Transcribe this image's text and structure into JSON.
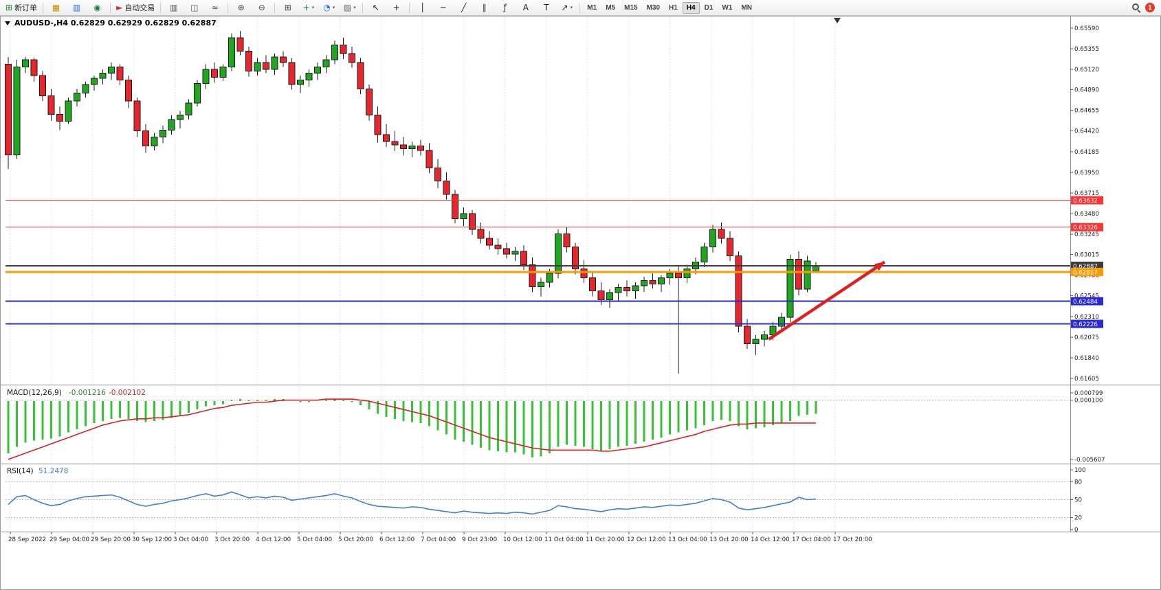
{
  "toolbar": {
    "new_order_label": "新订单",
    "autotrading_label": "自动交易",
    "buttons": [
      {
        "name": "new-order",
        "glyph": "⊞",
        "color": "#1e8e3e",
        "label": "新订单"
      },
      {
        "sep": true
      },
      {
        "name": "charts-profiles",
        "glyph": "▦",
        "color": "#c79100"
      },
      {
        "name": "market-watch",
        "glyph": "▥",
        "color": "#1a73e8"
      },
      {
        "name": "data-window",
        "glyph": "◉",
        "color": "#188038"
      },
      {
        "sep": true
      },
      {
        "name": "autotrading",
        "glyph": "►",
        "color": "#d93025",
        "label": "自动交易"
      },
      {
        "sep": true
      },
      {
        "name": "bar-chart",
        "glyph": "▥",
        "color": "#555555"
      },
      {
        "name": "candlestick-chart",
        "glyph": "◫",
        "color": "#555555"
      },
      {
        "name": "line-chart",
        "glyph": "≈",
        "color": "#555555"
      },
      {
        "sep": true
      },
      {
        "name": "zoom-in",
        "glyph": "⊕",
        "color": "#444444"
      },
      {
        "name": "zoom-out",
        "glyph": "⊖",
        "color": "#444444"
      },
      {
        "sep": true
      },
      {
        "name": "tile-windows",
        "glyph": "⊞",
        "color": "#444444"
      },
      {
        "name": "indicators",
        "glyph": "+",
        "color": "#188038",
        "caret": true
      },
      {
        "name": "periods",
        "glyph": "◔",
        "color": "#1a73e8",
        "caret": true
      },
      {
        "name": "templates",
        "glyph": "▨",
        "color": "#666666",
        "caret": true
      },
      {
        "sep": true
      },
      {
        "name": "cursor",
        "glyph": "↖",
        "color": "#222222"
      },
      {
        "name": "crosshair",
        "glyph": "+",
        "color": "#222222"
      },
      {
        "sep": true
      },
      {
        "name": "vertical-line",
        "glyph": "│",
        "color": "#222222"
      },
      {
        "name": "horizontal-line",
        "glyph": "─",
        "color": "#222222"
      },
      {
        "name": "trendline",
        "glyph": "╱",
        "color": "#222222"
      },
      {
        "name": "equidistant-channel",
        "glyph": "∥",
        "color": "#222222"
      },
      {
        "name": "fibonacci",
        "glyph": "ƒ",
        "color": "#222222"
      },
      {
        "name": "text",
        "glyph": "A",
        "color": "#222222"
      },
      {
        "name": "text-label",
        "glyph": "T",
        "color": "#222222"
      },
      {
        "name": "arrows",
        "glyph": "↗",
        "color": "#222222",
        "caret": true
      },
      {
        "sep": true
      }
    ],
    "timeframes": [
      "M1",
      "M5",
      "M15",
      "M30",
      "H1",
      "H4",
      "D1",
      "W1",
      "MN"
    ],
    "active_timeframe": "H4",
    "notification_count": "1"
  },
  "chart_data": {
    "type": "candlestick+indicators",
    "symbol_label": "AUDUSD-,H4",
    "ohlc_text": "0.62829 0.62929 0.62829 0.62887",
    "current_ohlc": {
      "open": 0.62829,
      "high": 0.62929,
      "low": 0.62829,
      "close": 0.62887
    },
    "price_axis": {
      "labels": [
        "0.65590",
        "0.65355",
        "0.65120",
        "0.64890",
        "0.64655",
        "0.64420",
        "0.64185",
        "0.63950",
        "0.63715",
        "0.63480",
        "0.63245",
        "0.63015",
        "0.62780",
        "0.62545",
        "0.62310",
        "0.62075",
        "0.61840",
        "0.61605"
      ]
    },
    "time_axis_labels": [
      "28 Sep 2022",
      "29 Sep 04:00",
      "29 Sep 20:00",
      "30 Sep 12:00",
      "3 Oct 04:00",
      "3 Oct 20:00",
      "4 Oct 12:00",
      "5 Oct 04:00",
      "5 Oct 20:00",
      "6 Oct 12:00",
      "7 Oct 04:00",
      "9 Oct 23:00",
      "10 Oct 12:00",
      "11 Oct 04:00",
      "11 Oct 20:00",
      "12 Oct 12:00",
      "13 Oct 04:00",
      "13 Oct 20:00",
      "14 Oct 12:00",
      "17 Oct 04:00",
      "17 Oct 20:00"
    ],
    "candles": [
      [
        0.6518,
        0.6526,
        0.6399,
        0.6415
      ],
      [
        0.6415,
        0.6523,
        0.641,
        0.6515
      ],
      [
        0.6515,
        0.6526,
        0.6508,
        0.6523
      ],
      [
        0.6523,
        0.6525,
        0.6498,
        0.6505
      ],
      [
        0.6505,
        0.651,
        0.6476,
        0.6482
      ],
      [
        0.6482,
        0.649,
        0.6454,
        0.6461
      ],
      [
        0.6461,
        0.647,
        0.6443,
        0.6453
      ],
      [
        0.6453,
        0.648,
        0.645,
        0.6476
      ],
      [
        0.6476,
        0.649,
        0.647,
        0.6485
      ],
      [
        0.6485,
        0.6498,
        0.648,
        0.6495
      ],
      [
        0.6495,
        0.6505,
        0.6488,
        0.6502
      ],
      [
        0.6502,
        0.6512,
        0.6495,
        0.6508
      ],
      [
        0.6508,
        0.652,
        0.65,
        0.6515
      ],
      [
        0.6515,
        0.6518,
        0.6494,
        0.65
      ],
      [
        0.65,
        0.6505,
        0.6468,
        0.6476
      ],
      [
        0.6476,
        0.648,
        0.6435,
        0.6442
      ],
      [
        0.6442,
        0.645,
        0.6417,
        0.6425
      ],
      [
        0.6425,
        0.644,
        0.642,
        0.6435
      ],
      [
        0.6435,
        0.6448,
        0.6428,
        0.6443
      ],
      [
        0.6443,
        0.646,
        0.6438,
        0.6455
      ],
      [
        0.6455,
        0.6465,
        0.6445,
        0.646
      ],
      [
        0.646,
        0.6478,
        0.6455,
        0.6474
      ],
      [
        0.6474,
        0.65,
        0.647,
        0.6496
      ],
      [
        0.6496,
        0.6518,
        0.649,
        0.6512
      ],
      [
        0.6512,
        0.652,
        0.6497,
        0.6503
      ],
      [
        0.6503,
        0.6518,
        0.6499,
        0.6515
      ],
      [
        0.6515,
        0.6553,
        0.651,
        0.6548
      ],
      [
        0.6548,
        0.6556,
        0.6528,
        0.6533
      ],
      [
        0.6533,
        0.6538,
        0.6504,
        0.651
      ],
      [
        0.651,
        0.6525,
        0.6505,
        0.652
      ],
      [
        0.652,
        0.6528,
        0.6508,
        0.6512
      ],
      [
        0.6512,
        0.653,
        0.6506,
        0.6526
      ],
      [
        0.6526,
        0.6533,
        0.6515,
        0.652
      ],
      [
        0.652,
        0.6525,
        0.6489,
        0.6495
      ],
      [
        0.6495,
        0.6505,
        0.6485,
        0.65
      ],
      [
        0.65,
        0.6512,
        0.6492,
        0.6508
      ],
      [
        0.6508,
        0.652,
        0.65,
        0.6515
      ],
      [
        0.6515,
        0.6528,
        0.6508,
        0.6523
      ],
      [
        0.6523,
        0.6545,
        0.6518,
        0.654
      ],
      [
        0.654,
        0.6548,
        0.6524,
        0.653
      ],
      [
        0.653,
        0.6538,
        0.6514,
        0.652
      ],
      [
        0.652,
        0.6525,
        0.6484,
        0.649
      ],
      [
        0.649,
        0.6495,
        0.6454,
        0.646
      ],
      [
        0.646,
        0.647,
        0.6429,
        0.6438
      ],
      [
        0.6438,
        0.645,
        0.6424,
        0.643
      ],
      [
        0.643,
        0.6442,
        0.6419,
        0.6426
      ],
      [
        0.6426,
        0.6435,
        0.6414,
        0.6422
      ],
      [
        0.6422,
        0.643,
        0.6412,
        0.6425
      ],
      [
        0.6425,
        0.6432,
        0.6414,
        0.642
      ],
      [
        0.642,
        0.6428,
        0.6394,
        0.64
      ],
      [
        0.64,
        0.641,
        0.6377,
        0.6385
      ],
      [
        0.6385,
        0.6395,
        0.6364,
        0.637
      ],
      [
        0.637,
        0.6375,
        0.6337,
        0.6342
      ],
      [
        0.6342,
        0.6355,
        0.6334,
        0.6348
      ],
      [
        0.6348,
        0.6352,
        0.6324,
        0.633
      ],
      [
        0.633,
        0.6338,
        0.6314,
        0.632
      ],
      [
        0.632,
        0.6328,
        0.6307,
        0.6312
      ],
      [
        0.6312,
        0.632,
        0.6301,
        0.6308
      ],
      [
        0.6308,
        0.6315,
        0.6297,
        0.6302
      ],
      [
        0.6302,
        0.631,
        0.6294,
        0.6305
      ],
      [
        0.6305,
        0.6312,
        0.6284,
        0.629
      ],
      [
        0.629,
        0.6298,
        0.6259,
        0.6265
      ],
      [
        0.6265,
        0.6275,
        0.6254,
        0.627
      ],
      [
        0.627,
        0.6285,
        0.6264,
        0.628
      ],
      [
        0.628,
        0.633,
        0.6274,
        0.6325
      ],
      [
        0.6325,
        0.6333,
        0.6304,
        0.631
      ],
      [
        0.631,
        0.6315,
        0.6279,
        0.6285
      ],
      [
        0.6285,
        0.6295,
        0.6269,
        0.6275
      ],
      [
        0.6275,
        0.6282,
        0.6254,
        0.626
      ],
      [
        0.626,
        0.627,
        0.6244,
        0.625
      ],
      [
        0.625,
        0.6262,
        0.6241,
        0.6258
      ],
      [
        0.6258,
        0.6268,
        0.6249,
        0.6264
      ],
      [
        0.6264,
        0.6272,
        0.6254,
        0.626
      ],
      [
        0.626,
        0.627,
        0.6251,
        0.6266
      ],
      [
        0.6266,
        0.6276,
        0.6259,
        0.6272
      ],
      [
        0.6272,
        0.628,
        0.6263,
        0.6268
      ],
      [
        0.6268,
        0.6278,
        0.6259,
        0.6275
      ],
      [
        0.6275,
        0.6285,
        0.6267,
        0.628
      ],
      [
        0.628,
        0.6288,
        0.6166,
        0.6275
      ],
      [
        0.6275,
        0.629,
        0.6269,
        0.6285
      ],
      [
        0.6285,
        0.6298,
        0.6279,
        0.6293
      ],
      [
        0.6293,
        0.6315,
        0.6287,
        0.631
      ],
      [
        0.631,
        0.6335,
        0.6304,
        0.633
      ],
      [
        0.633,
        0.6338,
        0.6314,
        0.632
      ],
      [
        0.632,
        0.6328,
        0.6294,
        0.63
      ],
      [
        0.63,
        0.6305,
        0.6213,
        0.622
      ],
      [
        0.622,
        0.6228,
        0.6194,
        0.62
      ],
      [
        0.62,
        0.621,
        0.6187,
        0.6205
      ],
      [
        0.6205,
        0.6215,
        0.6197,
        0.621
      ],
      [
        0.621,
        0.6225,
        0.6204,
        0.622
      ],
      [
        0.622,
        0.6235,
        0.6214,
        0.623
      ],
      [
        0.623,
        0.6301,
        0.6224,
        0.6296
      ],
      [
        0.6296,
        0.6305,
        0.6255,
        0.6262
      ],
      [
        0.6262,
        0.63,
        0.6259,
        0.6294
      ],
      [
        0.62829,
        0.62929,
        0.62829,
        0.62887
      ]
    ],
    "level_lines": [
      {
        "value": 0.63632,
        "color": "#ff3333",
        "width": 1
      },
      {
        "value": 0.63326,
        "color": "#ff3333",
        "width": 1
      },
      {
        "value": 0.62887,
        "color": "#3c3c3c",
        "width": 2
      },
      {
        "value": 0.62817,
        "color": "#ff9900",
        "width": 3
      },
      {
        "value": 0.62484,
        "color": "#2929d6",
        "width": 2
      },
      {
        "value": 0.62226,
        "color": "#2929d6",
        "width": 2
      }
    ],
    "price_tags": [
      {
        "text": "0.63632",
        "value": 0.63632,
        "bg": "#ff3333"
      },
      {
        "text": "0.63326",
        "value": 0.63326,
        "bg": "#ff3333"
      },
      {
        "text": "0.62887",
        "value": 0.62887,
        "bg": "#3c3c3c"
      },
      {
        "text": "0.62817",
        "value": 0.62817,
        "bg": "#ff9900"
      },
      {
        "text": "0.62484",
        "value": 0.62484,
        "bg": "#2929d6"
      },
      {
        "text": "0.62226",
        "value": 0.62226,
        "bg": "#2929d6"
      }
    ],
    "trend_arrow": {
      "from_bar": 88.5,
      "from_price": 0.6205,
      "to_bar": 102,
      "to_price": 0.6293,
      "color": "#e02020"
    },
    "macd": {
      "name": "MACD(12,26,9)",
      "value1": "-0.001216",
      "value2": "-0.002102",
      "scale_labels": [
        "0.000799",
        "0.000100",
        "-0.005607"
      ],
      "scale_top": 0.000799,
      "scale_bottom": -0.005607,
      "grid_level": 0.0001,
      "histogram": [
        -0.005,
        -0.0044,
        -0.004,
        -0.0038,
        -0.0037,
        -0.0036,
        -0.0034,
        -0.003,
        -0.0027,
        -0.0024,
        -0.0021,
        -0.0019,
        -0.0017,
        -0.0016,
        -0.0017,
        -0.0019,
        -0.002,
        -0.0019,
        -0.0018,
        -0.0016,
        -0.0014,
        -0.0011,
        -0.0008,
        -0.0005,
        -0.0004,
        -0.0003,
        0.0001,
        0.0002,
        0.0001,
        0.0001,
        0.0001,
        0.0002,
        0.0002,
        0.0,
        -0.0001,
        -0.0001,
        0.0,
        0.0001,
        0.0002,
        0.0001,
        -0.0001,
        -0.0004,
        -0.0008,
        -0.0012,
        -0.0015,
        -0.0017,
        -0.0019,
        -0.002,
        -0.0021,
        -0.0024,
        -0.0028,
        -0.0032,
        -0.0037,
        -0.0039,
        -0.0042,
        -0.0045,
        -0.0047,
        -0.0048,
        -0.0049,
        -0.0049,
        -0.0051,
        -0.0054,
        -0.0053,
        -0.005,
        -0.0044,
        -0.0042,
        -0.0043,
        -0.0044,
        -0.0046,
        -0.0048,
        -0.0046,
        -0.0044,
        -0.0043,
        -0.0041,
        -0.0039,
        -0.0037,
        -0.0035,
        -0.0032,
        -0.003,
        -0.0028,
        -0.0026,
        -0.0023,
        -0.0019,
        -0.0018,
        -0.0019,
        -0.0024,
        -0.0027,
        -0.0026,
        -0.0025,
        -0.0023,
        -0.0021,
        -0.0019,
        -0.0014,
        -0.0013,
        -0.0012
      ],
      "signal": [
        -0.0056,
        -0.0053,
        -0.005,
        -0.0047,
        -0.0044,
        -0.0041,
        -0.0038,
        -0.0035,
        -0.0032,
        -0.0029,
        -0.0026,
        -0.0023,
        -0.0021,
        -0.0019,
        -0.0018,
        -0.0017,
        -0.0017,
        -0.0016,
        -0.0016,
        -0.0015,
        -0.0014,
        -0.0013,
        -0.0011,
        -0.0009,
        -0.0007,
        -0.0006,
        -0.0004,
        -0.0003,
        -0.0002,
        -0.0001,
        -0.0001,
        0.0,
        0.0001,
        0.0001,
        0.0001,
        0.0001,
        0.0001,
        0.0002,
        0.0002,
        0.0002,
        0.0002,
        0.0001,
        0.0,
        -0.0002,
        -0.0004,
        -0.0006,
        -0.0008,
        -0.001,
        -0.0012,
        -0.0014,
        -0.0017,
        -0.002,
        -0.0023,
        -0.0026,
        -0.0029,
        -0.0032,
        -0.0035,
        -0.0037,
        -0.0039,
        -0.0041,
        -0.0043,
        -0.0045,
        -0.0046,
        -0.0047,
        -0.0047,
        -0.0047,
        -0.0047,
        -0.0047,
        -0.0047,
        -0.0048,
        -0.0048,
        -0.0047,
        -0.0046,
        -0.0045,
        -0.0044,
        -0.0042,
        -0.004,
        -0.0038,
        -0.0036,
        -0.0034,
        -0.0032,
        -0.0029,
        -0.0027,
        -0.0025,
        -0.0023,
        -0.0022,
        -0.0022,
        -0.0021,
        -0.0021,
        -0.0021,
        -0.0021,
        -0.0021,
        -0.0021,
        -0.0021,
        -0.0021
      ]
    },
    "rsi": {
      "name": "RSI(14)",
      "value": "51.2478",
      "scale_labels": [
        "100",
        "80",
        "50",
        "20",
        "0"
      ],
      "levels": [
        80,
        50,
        20
      ],
      "values": [
        42,
        55,
        57,
        50,
        44,
        40,
        42,
        48,
        52,
        55,
        56,
        57,
        58,
        54,
        48,
        42,
        39,
        42,
        44,
        48,
        50,
        53,
        57,
        60,
        56,
        58,
        63,
        58,
        53,
        55,
        53,
        56,
        54,
        49,
        51,
        53,
        55,
        57,
        60,
        56,
        53,
        47,
        42,
        39,
        38,
        37,
        36,
        38,
        37,
        34,
        32,
        30,
        28,
        31,
        29,
        28,
        27,
        28,
        27,
        29,
        28,
        26,
        29,
        32,
        40,
        38,
        35,
        34,
        32,
        30,
        33,
        35,
        34,
        36,
        38,
        37,
        39,
        41,
        40,
        42,
        44,
        48,
        52,
        50,
        46,
        36,
        33,
        35,
        37,
        40,
        43,
        46,
        54,
        50,
        51.25
      ]
    },
    "colors": {
      "bull": "#1fa81f",
      "bear": "#e8262d",
      "wick": "#1a1a1a",
      "macd_hist": "#35c435",
      "macd_signal": "#e01f1f",
      "rsi_line": "#3f7fd6",
      "grid": "#d8d8d8",
      "arrow": "#e02020"
    }
  }
}
